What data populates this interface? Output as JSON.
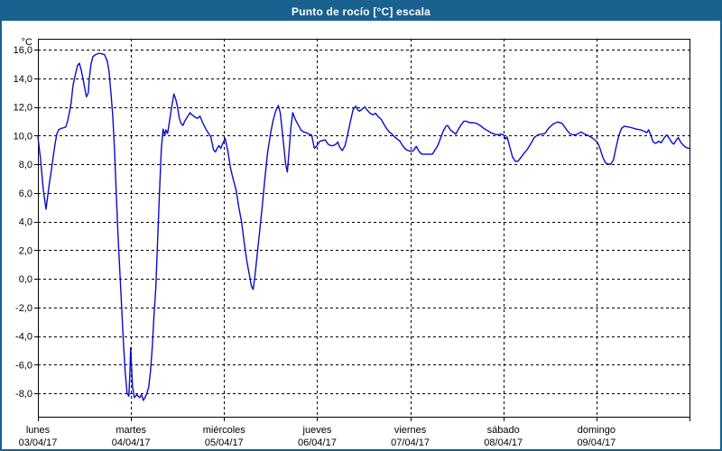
{
  "window": {
    "title": "Punto de rocío [°C] escala",
    "title_bar_color": "#19618f",
    "background_color": "#ffffff"
  },
  "chart_data": {
    "type": "line",
    "title": "Punto de rocío [°C] escala",
    "ylabel": "°C",
    "xlabel": "",
    "y_axis": {
      "unit_label": "°C",
      "tick_values": [
        16,
        14,
        12,
        10,
        8,
        6,
        4,
        2,
        0,
        -2,
        -4,
        -6,
        -8
      ],
      "tick_labels": [
        "16,0",
        "14,0",
        "12,0",
        "10,0",
        "8,0",
        "6,0",
        "4,0",
        "2,0",
        "0,0",
        "-2,0",
        "-4,0",
        "-6,0",
        "-8,0"
      ],
      "axis_min": -9.6,
      "axis_max": 16.75,
      "grid": "dashed"
    },
    "x_axis": {
      "span_days": 7,
      "days": [
        {
          "name": "lunes",
          "date": "03/04/17"
        },
        {
          "name": "martes",
          "date": "04/04/17"
        },
        {
          "name": "miércoles",
          "date": "05/04/17"
        },
        {
          "name": "jueves",
          "date": "06/04/17"
        },
        {
          "name": "viernes",
          "date": "07/04/17"
        },
        {
          "name": "sábado",
          "date": "08/04/17"
        },
        {
          "name": "domingo",
          "date": "09/04/17"
        }
      ],
      "grid": "dashed-at-day-boundaries"
    },
    "line_color": "#0b0bcc",
    "grid_color": "#000000",
    "legend": "none",
    "series": [
      {
        "name": "Punto de rocío [°C]",
        "x_unit": "days-since-2017-04-03",
        "y_unit": "°C",
        "points": [
          [
            0,
            9.9
          ],
          [
            0.029,
            8.3
          ],
          [
            0.058,
            6.2
          ],
          [
            0.087,
            4.85
          ],
          [
            0.106,
            5.8
          ],
          [
            0.126,
            6.8
          ],
          [
            0.145,
            7.6
          ],
          [
            0.164,
            8.5
          ],
          [
            0.184,
            9.4
          ],
          [
            0.203,
            10.1
          ],
          [
            0.223,
            10.4
          ],
          [
            0.252,
            10.5
          ],
          [
            0.281,
            10.55
          ],
          [
            0.3,
            10.6
          ],
          [
            0.319,
            11
          ],
          [
            0.339,
            11.65
          ],
          [
            0.358,
            12.3
          ],
          [
            0.377,
            13.5
          ],
          [
            0.397,
            14.1
          ],
          [
            0.426,
            14.9
          ],
          [
            0.445,
            15.05
          ],
          [
            0.464,
            14.6
          ],
          [
            0.484,
            14
          ],
          [
            0.503,
            13.3
          ],
          [
            0.522,
            12.7
          ],
          [
            0.542,
            13
          ],
          [
            0.551,
            13.9
          ],
          [
            0.571,
            15
          ],
          [
            0.59,
            15.5
          ],
          [
            0.619,
            15.65
          ],
          [
            0.658,
            15.75
          ],
          [
            0.687,
            15.7
          ],
          [
            0.716,
            15.65
          ],
          [
            0.745,
            15.2
          ],
          [
            0.764,
            14.5
          ],
          [
            0.784,
            13
          ],
          [
            0.803,
            11.5
          ],
          [
            0.823,
            9
          ],
          [
            0.842,
            6
          ],
          [
            0.861,
            3
          ],
          [
            0.88,
            0.5
          ],
          [
            0.9,
            -2
          ],
          [
            0.919,
            -4.5
          ],
          [
            0.938,
            -6.5
          ],
          [
            0.958,
            -8
          ],
          [
            0.977,
            -8.2
          ],
          [
            0.987,
            -6.8
          ],
          [
            0.997,
            -4.8
          ],
          [
            1.006,
            -6.2
          ],
          [
            1.016,
            -7.5
          ],
          [
            1.035,
            -8.3
          ],
          [
            1.064,
            -8.1
          ],
          [
            1.093,
            -8.3
          ],
          [
            1.113,
            -8.1
          ],
          [
            1.132,
            -8.5
          ],
          [
            1.151,
            -8.3
          ],
          [
            1.17,
            -8
          ],
          [
            1.19,
            -7.6
          ],
          [
            1.209,
            -6.5
          ],
          [
            1.228,
            -4.8
          ],
          [
            1.248,
            -2.5
          ],
          [
            1.267,
            -0.6
          ],
          [
            1.286,
            2.6
          ],
          [
            1.306,
            6
          ],
          [
            1.325,
            9
          ],
          [
            1.345,
            10.45
          ],
          [
            1.364,
            10
          ],
          [
            1.374,
            10.4
          ],
          [
            1.393,
            10.15
          ],
          [
            1.412,
            10.9
          ],
          [
            1.432,
            11.8
          ],
          [
            1.461,
            12.9
          ],
          [
            1.48,
            12.55
          ],
          [
            1.5,
            12
          ],
          [
            1.519,
            11.2
          ],
          [
            1.538,
            10.85
          ],
          [
            1.558,
            10.7
          ],
          [
            1.577,
            11
          ],
          [
            1.606,
            11.3
          ],
          [
            1.635,
            11.6
          ],
          [
            1.654,
            11.45
          ],
          [
            1.683,
            11.3
          ],
          [
            1.712,
            11.2
          ],
          [
            1.741,
            11.35
          ],
          [
            1.77,
            10.9
          ],
          [
            1.8,
            10.5
          ],
          [
            1.829,
            10.2
          ],
          [
            1.858,
            9.9
          ],
          [
            1.887,
            9
          ],
          [
            1.906,
            8.85
          ],
          [
            1.926,
            9.1
          ],
          [
            1.945,
            9.3
          ],
          [
            1.964,
            9.1
          ],
          [
            1.983,
            9.4
          ],
          [
            2.012,
            9.8
          ],
          [
            2.041,
            8.9
          ],
          [
            2.07,
            7.7
          ],
          [
            2.1,
            6.9
          ],
          [
            2.129,
            6.2
          ],
          [
            2.158,
            5
          ],
          [
            2.187,
            4
          ],
          [
            2.216,
            2.5
          ],
          [
            2.245,
            1.2
          ],
          [
            2.274,
            0.2
          ],
          [
            2.293,
            -0.5
          ],
          [
            2.312,
            -0.75
          ],
          [
            2.332,
            0.2
          ],
          [
            2.361,
            2
          ],
          [
            2.39,
            3.8
          ],
          [
            2.409,
            5
          ],
          [
            2.438,
            7
          ],
          [
            2.467,
            8.8
          ],
          [
            2.496,
            10
          ],
          [
            2.525,
            11
          ],
          [
            2.554,
            11.7
          ],
          [
            2.583,
            12.1
          ],
          [
            2.603,
            11.6
          ],
          [
            2.622,
            10.5
          ],
          [
            2.641,
            9.3
          ],
          [
            2.661,
            8
          ],
          [
            2.68,
            7.45
          ],
          [
            2.699,
            9
          ],
          [
            2.719,
            10.6
          ],
          [
            2.738,
            11.6
          ],
          [
            2.767,
            11.1
          ],
          [
            2.796,
            10.75
          ],
          [
            2.825,
            10.4
          ],
          [
            2.854,
            10.25
          ],
          [
            2.883,
            10.2
          ],
          [
            2.912,
            10.1
          ],
          [
            2.941,
            10.05
          ],
          [
            2.97,
            9.1
          ],
          [
            2.999,
            9.3
          ],
          [
            3.028,
            9.6
          ],
          [
            3.057,
            9.65
          ],
          [
            3.086,
            9.7
          ],
          [
            3.116,
            9.4
          ],
          [
            3.145,
            9.3
          ],
          [
            3.174,
            9.3
          ],
          [
            3.203,
            9.4
          ],
          [
            3.222,
            9.55
          ],
          [
            3.241,
            9.2
          ],
          [
            3.27,
            8.95
          ],
          [
            3.299,
            9.3
          ],
          [
            3.328,
            10.1
          ],
          [
            3.357,
            11
          ],
          [
            3.386,
            11.8
          ],
          [
            3.415,
            12.05
          ],
          [
            3.435,
            11.8
          ],
          [
            3.454,
            11.7
          ],
          [
            3.483,
            11.85
          ],
          [
            3.512,
            12
          ],
          [
            3.541,
            11.75
          ],
          [
            3.57,
            11.55
          ],
          [
            3.599,
            11.45
          ],
          [
            3.628,
            11.55
          ],
          [
            3.657,
            11.3
          ],
          [
            3.686,
            11.15
          ],
          [
            3.715,
            10.8
          ],
          [
            3.744,
            10.5
          ],
          [
            3.774,
            10.25
          ],
          [
            3.803,
            10.1
          ],
          [
            3.832,
            9.9
          ],
          [
            3.861,
            9.75
          ],
          [
            3.89,
            9.6
          ],
          [
            3.919,
            9.3
          ],
          [
            3.948,
            9.05
          ],
          [
            3.977,
            8.95
          ],
          [
            4.006,
            8.9
          ],
          [
            4.035,
            8.95
          ],
          [
            4.064,
            9.25
          ],
          [
            4.093,
            8.9
          ],
          [
            4.122,
            8.7
          ],
          [
            4.161,
            8.7
          ],
          [
            4.199,
            8.7
          ],
          [
            4.238,
            8.7
          ],
          [
            4.267,
            9
          ],
          [
            4.296,
            9.3
          ],
          [
            4.325,
            9.8
          ],
          [
            4.354,
            10.3
          ],
          [
            4.383,
            10.65
          ],
          [
            4.402,
            10.7
          ],
          [
            4.431,
            10.4
          ],
          [
            4.46,
            10.25
          ],
          [
            4.489,
            10.1
          ],
          [
            4.518,
            10.45
          ],
          [
            4.547,
            10.75
          ],
          [
            4.576,
            11
          ],
          [
            4.605,
            11
          ],
          [
            4.634,
            10.9
          ],
          [
            4.673,
            10.9
          ],
          [
            4.712,
            10.85
          ],
          [
            4.751,
            10.7
          ],
          [
            4.789,
            10.5
          ],
          [
            4.828,
            10.35
          ],
          [
            4.867,
            10.2
          ],
          [
            4.906,
            10.1
          ],
          [
            4.944,
            10.05
          ],
          [
            4.973,
            10.1
          ],
          [
            5.002,
            10.05
          ],
          [
            5.022,
            9.75
          ],
          [
            5.041,
            9.9
          ],
          [
            5.07,
            9.2
          ],
          [
            5.099,
            8.5
          ],
          [
            5.128,
            8.2
          ],
          [
            5.157,
            8.2
          ],
          [
            5.186,
            8.45
          ],
          [
            5.215,
            8.7
          ],
          [
            5.254,
            9
          ],
          [
            5.293,
            9.4
          ],
          [
            5.331,
            9.85
          ],
          [
            5.37,
            10.05
          ],
          [
            5.409,
            10.1
          ],
          [
            5.448,
            10.15
          ],
          [
            5.486,
            10.5
          ],
          [
            5.535,
            10.8
          ],
          [
            5.583,
            10.95
          ],
          [
            5.631,
            10.85
          ],
          [
            5.68,
            10.4
          ],
          [
            5.719,
            10.1
          ],
          [
            5.757,
            10.05
          ],
          [
            5.796,
            10.1
          ],
          [
            5.835,
            10.25
          ],
          [
            5.873,
            10.1
          ],
          [
            5.912,
            10
          ],
          [
            5.951,
            9.85
          ],
          [
            5.98,
            9.7
          ],
          [
            6.009,
            9.55
          ],
          [
            6.038,
            9.1
          ],
          [
            6.067,
            8.5
          ],
          [
            6.096,
            8.1
          ],
          [
            6.125,
            8
          ],
          [
            6.154,
            8
          ],
          [
            6.183,
            8.3
          ],
          [
            6.212,
            9.2
          ],
          [
            6.241,
            10
          ],
          [
            6.27,
            10.5
          ],
          [
            6.299,
            10.65
          ],
          [
            6.338,
            10.6
          ],
          [
            6.376,
            10.55
          ],
          [
            6.425,
            10.45
          ],
          [
            6.473,
            10.4
          ],
          [
            6.512,
            10.3
          ],
          [
            6.541,
            10.2
          ],
          [
            6.56,
            10.4
          ],
          [
            6.58,
            10.1
          ],
          [
            6.609,
            9.55
          ],
          [
            6.638,
            9.45
          ],
          [
            6.667,
            9.6
          ],
          [
            6.696,
            9.5
          ],
          [
            6.725,
            9.8
          ],
          [
            6.754,
            10.05
          ],
          [
            6.783,
            9.8
          ],
          [
            6.812,
            9.5
          ],
          [
            6.831,
            9.4
          ],
          [
            6.86,
            9.7
          ],
          [
            6.88,
            9.85
          ],
          [
            6.909,
            9.5
          ],
          [
            6.938,
            9.3
          ],
          [
            6.967,
            9.15
          ],
          [
            6.996,
            9.1
          ]
        ]
      }
    ]
  }
}
